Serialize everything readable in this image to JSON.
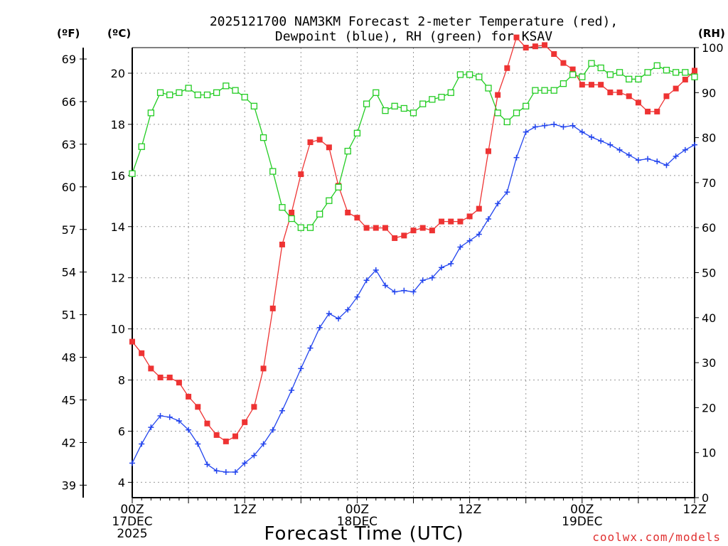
{
  "chart_data": {
    "type": "line",
    "title": [
      "2025121700 NAM3KM Forecast 2-meter Temperature (red),",
      "Dewpoint (blue), RH (green) for KSAV"
    ],
    "xlabel": "Forecast Time (UTC)",
    "unit_labels": {
      "f": "(ºF)",
      "c": "(ºC)",
      "rh": "(RH)"
    },
    "x_range": [
      0,
      60
    ],
    "x_ticks": [
      {
        "hour": 0,
        "lines": [
          "00Z",
          "17DEC",
          "2025"
        ]
      },
      {
        "hour": 12,
        "lines": [
          "12Z"
        ]
      },
      {
        "hour": 24,
        "lines": [
          "00Z",
          "18DEC"
        ]
      },
      {
        "hour": 36,
        "lines": [
          "12Z"
        ]
      },
      {
        "hour": 48,
        "lines": [
          "00Z",
          "19DEC"
        ]
      },
      {
        "hour": 60,
        "lines": [
          "12Z"
        ]
      }
    ],
    "c_axis": {
      "range": [
        3.4,
        21.0
      ],
      "ticks": [
        "4",
        "6",
        "8",
        "10",
        "12",
        "14",
        "16",
        "18",
        "20"
      ]
    },
    "f_axis": {
      "ticks": [
        "39",
        "42",
        "45",
        "48",
        "51",
        "54",
        "57",
        "60",
        "63",
        "66",
        "69"
      ]
    },
    "rh_axis": {
      "range": [
        0,
        100
      ],
      "ticks": [
        "0",
        "10",
        "20",
        "30",
        "40",
        "50",
        "60",
        "70",
        "80",
        "90",
        "100"
      ]
    },
    "series": [
      {
        "name": "Temperature",
        "unit": "C",
        "color": "#ee3333",
        "marker": "filled-square",
        "x": [
          0,
          1,
          2,
          3,
          4,
          5,
          6,
          7,
          8,
          9,
          10,
          11,
          12,
          13,
          14,
          15,
          16,
          17,
          18,
          19,
          20,
          21,
          22,
          23,
          24,
          25,
          26,
          27,
          28,
          29,
          30,
          31,
          32,
          33,
          34,
          35,
          36,
          37,
          38,
          39,
          40,
          41,
          42,
          43,
          44,
          45,
          46,
          47,
          48,
          49,
          50,
          51,
          52,
          53,
          54,
          55,
          56,
          57,
          58,
          59,
          60
        ],
        "values": [
          9.5,
          9.05,
          8.45,
          8.1,
          8.1,
          7.9,
          7.35,
          6.95,
          6.3,
          5.85,
          5.6,
          5.8,
          6.35,
          6.95,
          8.45,
          10.8,
          13.3,
          14.55,
          16.05,
          17.3,
          17.4,
          17.1,
          15.6,
          14.55,
          14.35,
          13.95,
          13.95,
          13.95,
          13.55,
          13.65,
          13.85,
          13.95,
          13.85,
          14.2,
          14.2,
          14.2,
          14.4,
          14.7,
          16.95,
          19.15,
          20.2,
          21.4,
          21.0,
          21.05,
          21.1,
          20.75,
          20.4,
          20.15,
          19.55,
          19.55,
          19.55,
          19.25,
          19.25,
          19.1,
          18.85,
          18.5,
          18.5,
          19.1,
          19.4,
          19.75,
          20.1
        ]
      },
      {
        "name": "Dewpoint",
        "unit": "C",
        "color": "#2244ee",
        "marker": "plus",
        "x": [
          0,
          1,
          2,
          3,
          4,
          5,
          6,
          7,
          8,
          9,
          10,
          11,
          12,
          13,
          14,
          15,
          16,
          17,
          18,
          19,
          20,
          21,
          22,
          23,
          24,
          25,
          26,
          27,
          28,
          29,
          30,
          31,
          32,
          33,
          34,
          35,
          36,
          37,
          38,
          39,
          40,
          41,
          42,
          43,
          44,
          45,
          46,
          47,
          48,
          49,
          50,
          51,
          52,
          53,
          54,
          55,
          56,
          57,
          58,
          59,
          60
        ],
        "values": [
          4.75,
          5.5,
          6.15,
          6.6,
          6.55,
          6.4,
          6.05,
          5.5,
          4.7,
          4.45,
          4.4,
          4.4,
          4.75,
          5.05,
          5.5,
          6.05,
          6.8,
          7.6,
          8.45,
          9.25,
          10.05,
          10.6,
          10.4,
          10.75,
          11.25,
          11.9,
          12.3,
          11.7,
          11.45,
          11.5,
          11.45,
          11.9,
          12.0,
          12.4,
          12.55,
          13.2,
          13.45,
          13.7,
          14.3,
          14.9,
          15.35,
          16.7,
          17.7,
          17.9,
          17.95,
          18.0,
          17.9,
          17.95,
          17.7,
          17.5,
          17.35,
          17.2,
          17.0,
          16.8,
          16.6,
          16.65,
          16.55,
          16.4,
          16.75,
          17.0,
          17.2
        ]
      },
      {
        "name": "RH",
        "unit": "%",
        "color": "#22cc22",
        "marker": "open-square",
        "x": [
          0,
          1,
          2,
          3,
          4,
          5,
          6,
          7,
          8,
          9,
          10,
          11,
          12,
          13,
          14,
          15,
          16,
          17,
          18,
          19,
          20,
          21,
          22,
          23,
          24,
          25,
          26,
          27,
          28,
          29,
          30,
          31,
          32,
          33,
          34,
          35,
          36,
          37,
          38,
          39,
          40,
          41,
          42,
          43,
          44,
          45,
          46,
          47,
          48,
          49,
          50,
          51,
          52,
          53,
          54,
          55,
          56,
          57,
          58,
          59,
          60
        ],
        "values": [
          72,
          78,
          85.5,
          90,
          89.5,
          90,
          91,
          89.5,
          89.5,
          90,
          91.5,
          90.5,
          89,
          87,
          80,
          72.5,
          64.5,
          62,
          60,
          60,
          63,
          66,
          69,
          77,
          81,
          87.5,
          90,
          86,
          87,
          86.5,
          85.5,
          87.5,
          88.5,
          89,
          90,
          94,
          94,
          93.5,
          91,
          85.5,
          83.5,
          85.5,
          87,
          90.5,
          90.5,
          90.5,
          92,
          94,
          93.5,
          96.5,
          95.5,
          94,
          94.5,
          93,
          93,
          94.5,
          96,
          95,
          94.5,
          94.5,
          93.5
        ]
      }
    ]
  },
  "credit": "coolwx.com/models"
}
